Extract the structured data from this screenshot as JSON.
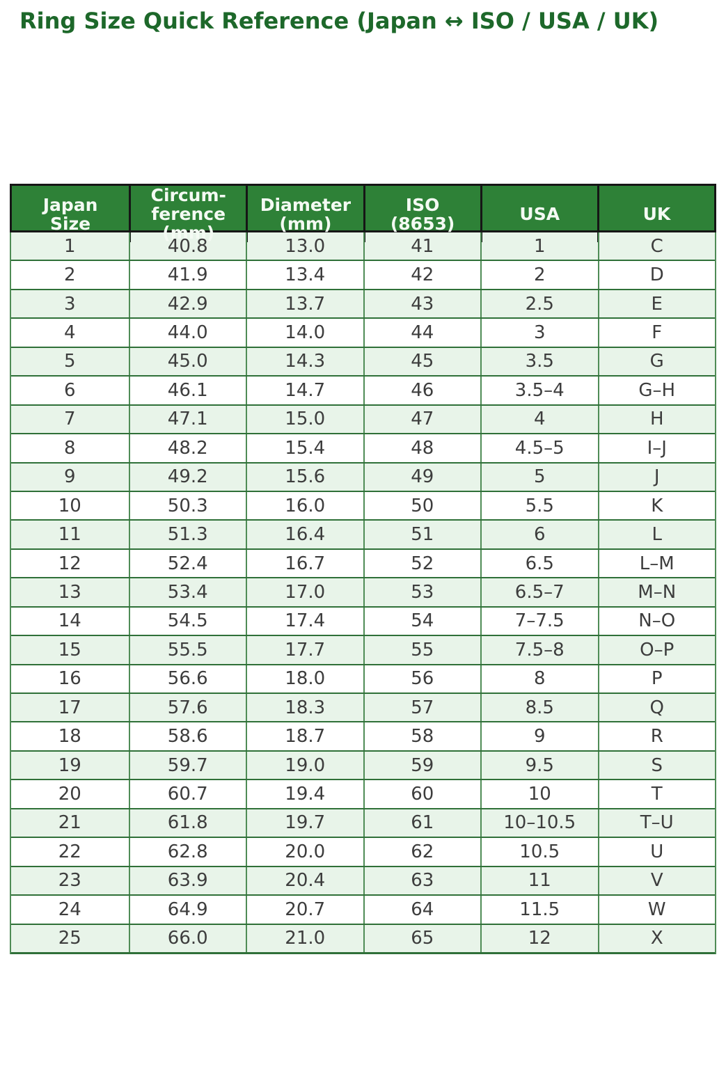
{
  "title": "Ring Size Quick Reference (Japan ↔ ISO / USA / UK)",
  "colors": {
    "title_color": "#1d682a",
    "header_bg": "#2e8137",
    "header_text": "#f4faf3",
    "row_alt_bg": "#e8f4e9",
    "row_bg": "#ffffff",
    "border_dark": "#161616",
    "border_green": "#2f7038",
    "border_green_light": "#4f8c56",
    "cell_text": "#3d3d3d"
  },
  "chart_data": {
    "type": "table",
    "title": "Ring Size Quick Reference (Japan ↔ ISO / USA / UK)",
    "columns": [
      "Japan\nSize",
      "Circum-\nference\n(mm)",
      "Diameter\n(mm)",
      "ISO\n(8653)",
      "USA",
      "UK"
    ],
    "rows": [
      [
        "1",
        "40.8",
        "13.0",
        "41",
        "1",
        "C"
      ],
      [
        "2",
        "41.9",
        "13.4",
        "42",
        "2",
        "D"
      ],
      [
        "3",
        "42.9",
        "13.7",
        "43",
        "2.5",
        "E"
      ],
      [
        "4",
        "44.0",
        "14.0",
        "44",
        "3",
        "F"
      ],
      [
        "5",
        "45.0",
        "14.3",
        "45",
        "3.5",
        "G"
      ],
      [
        "6",
        "46.1",
        "14.7",
        "46",
        "3.5–4",
        "G–H"
      ],
      [
        "7",
        "47.1",
        "15.0",
        "47",
        "4",
        "H"
      ],
      [
        "8",
        "48.2",
        "15.4",
        "48",
        "4.5–5",
        "I–J"
      ],
      [
        "9",
        "49.2",
        "15.6",
        "49",
        "5",
        "J"
      ],
      [
        "10",
        "50.3",
        "16.0",
        "50",
        "5.5",
        "K"
      ],
      [
        "11",
        "51.3",
        "16.4",
        "51",
        "6",
        "L"
      ],
      [
        "12",
        "52.4",
        "16.7",
        "52",
        "6.5",
        "L–M"
      ],
      [
        "13",
        "53.4",
        "17.0",
        "53",
        "6.5–7",
        "M–N"
      ],
      [
        "14",
        "54.5",
        "17.4",
        "54",
        "7–7.5",
        "N–O"
      ],
      [
        "15",
        "55.5",
        "17.7",
        "55",
        "7.5–8",
        "O–P"
      ],
      [
        "16",
        "56.6",
        "18.0",
        "56",
        "8",
        "P"
      ],
      [
        "17",
        "57.6",
        "18.3",
        "57",
        "8.5",
        "Q"
      ],
      [
        "18",
        "58.6",
        "18.7",
        "58",
        "9",
        "R"
      ],
      [
        "19",
        "59.7",
        "19.0",
        "59",
        "9.5",
        "S"
      ],
      [
        "20",
        "60.7",
        "19.4",
        "60",
        "10",
        "T"
      ],
      [
        "21",
        "61.8",
        "19.7",
        "61",
        "10–10.5",
        "T–U"
      ],
      [
        "22",
        "62.8",
        "20.0",
        "62",
        "10.5",
        "U"
      ],
      [
        "23",
        "63.9",
        "20.4",
        "63",
        "11",
        "V"
      ],
      [
        "24",
        "64.9",
        "20.7",
        "64",
        "11.5",
        "W"
      ],
      [
        "25",
        "66.0",
        "21.0",
        "65",
        "12",
        "X"
      ]
    ],
    "layout": {
      "header_lines": true,
      "zebra_striping": "odd rows light green, even rows white",
      "cell_alignment": "center"
    }
  }
}
